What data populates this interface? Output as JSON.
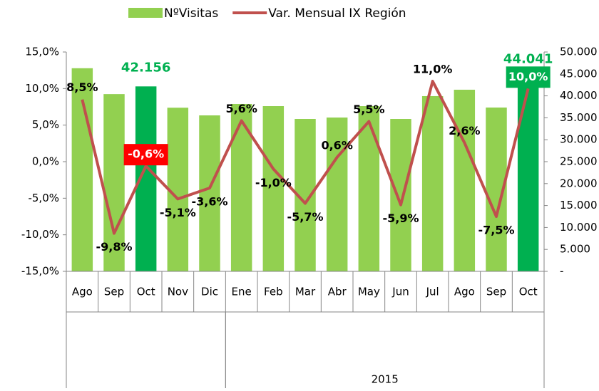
{
  "chart_data": {
    "type": "bar_line",
    "categories": [
      "Ago",
      "Sep",
      "Oct",
      "Nov",
      "Dic",
      "Ene",
      "Feb",
      "Mar",
      "Abr",
      "May",
      "Jun",
      "Jul",
      "Ago",
      "Sep",
      "Oct"
    ],
    "group_labels": [
      null,
      "2015"
    ],
    "group_sizes": [
      5,
      10
    ],
    "series": [
      {
        "name": "NºVisitas",
        "type": "bar",
        "axis": "y2",
        "color": "#92d050",
        "colors": [
          "#92d050",
          "#92d050",
          "#00b050",
          "#92d050",
          "#92d050",
          "#92d050",
          "#92d050",
          "#92d050",
          "#92d050",
          "#92d050",
          "#92d050",
          "#92d050",
          "#92d050",
          "#92d050",
          "#00b050"
        ],
        "values": [
          46300,
          40400,
          42156,
          37300,
          35550,
          38150,
          37660,
          34740,
          35060,
          37660,
          34740,
          39940,
          41400,
          37340,
          44041
        ],
        "value_labels": [
          null,
          null,
          "42.156",
          null,
          null,
          null,
          null,
          null,
          null,
          null,
          null,
          null,
          null,
          null,
          "44.041"
        ]
      },
      {
        "name": "Var. Mensual IX Región",
        "type": "line",
        "axis": "y",
        "color": "#c0504d",
        "values": [
          8.5,
          -9.8,
          -0.6,
          -5.1,
          -3.6,
          5.6,
          -1.0,
          -5.7,
          0.6,
          5.5,
          -5.9,
          11.0,
          2.6,
          -7.5,
          10.0
        ],
        "value_labels": [
          "8,5%",
          "-9,8%",
          "-0,6%",
          "-5,1%",
          "-3,6%",
          "5,6%",
          "-1,0%",
          "-5,7%",
          "0,6%",
          "5,5%",
          "-5,9%",
          "11,0%",
          "2,6%",
          "-7,5%",
          "10,0%"
        ],
        "label_colors": [
          null,
          null,
          "#ff0000",
          null,
          null,
          null,
          null,
          null,
          null,
          null,
          null,
          null,
          null,
          null,
          "#00b050"
        ]
      }
    ],
    "ylim": [
      -15,
      15
    ],
    "yticks": [
      {
        "value": -15,
        "label": "-15,0%"
      },
      {
        "value": -10,
        "label": "-10,0%"
      },
      {
        "value": -5,
        "label": "-5,0%"
      },
      {
        "value": 0,
        "label": "0,0%"
      },
      {
        "value": 5,
        "label": "5,0%"
      },
      {
        "value": 10,
        "label": "10,0%"
      },
      {
        "value": 15,
        "label": "15,0%"
      }
    ],
    "y2lim": [
      0,
      50000
    ],
    "y2ticks": [
      {
        "value": 0,
        "label": "-"
      },
      {
        "value": 5000,
        "label": "5.000"
      },
      {
        "value": 10000,
        "label": "10.000"
      },
      {
        "value": 15000,
        "label": "15.000"
      },
      {
        "value": 20000,
        "label": "20.000"
      },
      {
        "value": 25000,
        "label": "25.000"
      },
      {
        "value": 30000,
        "label": "30.000"
      },
      {
        "value": 35000,
        "label": "35.000"
      },
      {
        "value": 40000,
        "label": "40.000"
      },
      {
        "value": 45000,
        "label": "45.000"
      },
      {
        "value": 50000,
        "label": "50.000"
      }
    ],
    "legend": "top"
  }
}
